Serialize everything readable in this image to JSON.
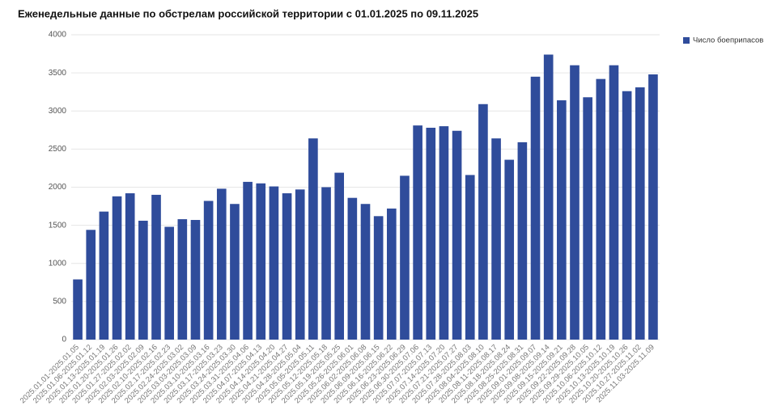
{
  "chart_data": {
    "type": "bar",
    "title": "Еженедельные данные по обстрелам российской территории с 01.01.2025 по 09.11.2025",
    "categories": [
      "2025.01.01-2025.01.05",
      "2025.01.06-2025.01.12",
      "2025.01.13-2025.01.19",
      "2025.01.20-2025.01.26",
      "2025.01.27-2025.02.02",
      "2025.02.03-2025.02.09",
      "2025.02.10-2025.02.16",
      "2025.02.17-2025.02.23",
      "2025.02.24-2025.03.02",
      "2025.03.03-2025.03.09",
      "2025.03.10-2025.03.16",
      "2025.03.17-2025.03.23",
      "2025.03.24-2025.03.30",
      "2025.03.31-2025.04.06",
      "2025.04.07-2025.04.13",
      "2025.04.14-2025.04.20",
      "2025.04.21-2025.04.27",
      "2025.04.28-2025.05.04",
      "2025.05.05-2025.05.11",
      "2025.05.12-2025.05.18",
      "2025.05.19-2025.05.25",
      "2025.05.26-2025.06.01",
      "2025.06.02-2025.06.08",
      "2025.06.09-2025.06.15",
      "2025.06.16-2025.06.22",
      "2025.06.23-2025.06.29",
      "2025.06.30-2025.07.06",
      "2025.07.07-2025.07.13",
      "2025.07.14-2025.07.20",
      "2025.07.21-2025.07.27",
      "2025.07.28-2025.08.03",
      "2025.08.04-2025.08.10",
      "2025.08.11-2025.08.17",
      "2025.08.18-2025.08.24",
      "2025.08.25-2025.08.31",
      "2025.09.01-2025.09.07",
      "2025.09.08-2025.09.14",
      "2025.09.15-2025.09.21",
      "2025.09.22-2025.09.28",
      "2025.09.29-2025.10.05",
      "2025.10.06-2025.10.12",
      "2025.10.13-2025.10.19",
      "2025.10.20-2025.10.26",
      "2025.10.27-2025.11.02",
      "2025.11.03-2025.11.09"
    ],
    "series": [
      {
        "name": "Число боеприпасов",
        "color": "#2f4c9b",
        "values": [
          790,
          1440,
          1680,
          1880,
          1920,
          1560,
          1900,
          1480,
          1580,
          1570,
          1820,
          1980,
          1780,
          2070,
          2050,
          2010,
          1920,
          1970,
          2640,
          2000,
          2190,
          1860,
          1780,
          1620,
          1720,
          2150,
          2810,
          2780,
          2800,
          2740,
          2160,
          3090,
          2640,
          2360,
          2590,
          3450,
          3740,
          3140,
          3600,
          3180,
          3420,
          3600,
          3260,
          3310,
          3480
        ]
      }
    ],
    "ylim": [
      0,
      4000
    ],
    "yticks": [
      0,
      500,
      1000,
      1500,
      2000,
      2500,
      3000,
      3500,
      4000
    ],
    "grid": true,
    "legend": "top-right"
  }
}
